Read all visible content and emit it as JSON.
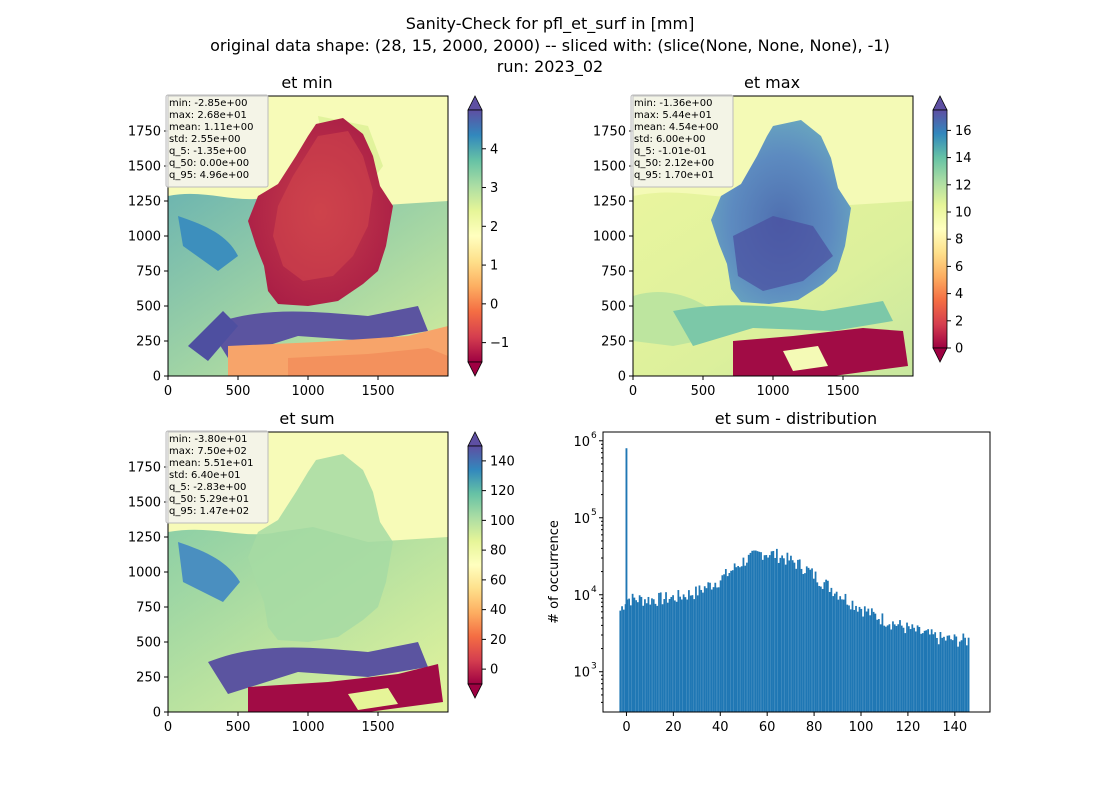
{
  "figure": {
    "title_lines": [
      "Sanity-Check for pfl_et_surf in [mm]",
      "original data shape: (28, 15, 2000, 2000) -- sliced with: (slice(None, None, None), -1)",
      "run: 2023_02"
    ]
  },
  "colors": {
    "spectral": [
      "#9e0142",
      "#d53e4f",
      "#f46d43",
      "#fdae61",
      "#fee08b",
      "#ffffbf",
      "#e6f598",
      "#abdda4",
      "#66c2a5",
      "#3288bd",
      "#5e4fa2"
    ],
    "hist_bar": "#1f77b4",
    "land_dark": "#b81f48",
    "sea": "#fbfcbd"
  },
  "chart_data": [
    {
      "type": "heatmap",
      "title": "et min",
      "xlim": [
        0,
        2000
      ],
      "ylim": [
        0,
        2000
      ],
      "xticks": [
        0,
        500,
        1000,
        1500
      ],
      "yticks": [
        0,
        250,
        500,
        750,
        1000,
        1250,
        1500,
        1750
      ],
      "colorbar": {
        "min": -1.5,
        "max": 5,
        "ticks": [
          -1,
          0,
          1,
          2,
          3,
          4
        ],
        "tick_labels": [
          "−1",
          "0",
          "1",
          "2",
          "3",
          "4"
        ],
        "extend": "both"
      },
      "stats": [
        "min: -2.85e+00",
        "max: 2.68e+01",
        "mean: 1.11e+00",
        "std: 2.55e+00",
        "q_5: -1.35e+00",
        "q_50: 0.00e+00",
        "q_95: 4.96e+00"
      ]
    },
    {
      "type": "heatmap",
      "title": "et max",
      "xlim": [
        0,
        2000
      ],
      "ylim": [
        0,
        2000
      ],
      "xticks": [
        0,
        500,
        1000,
        1500
      ],
      "yticks": [
        0,
        250,
        500,
        750,
        1000,
        1250,
        1500,
        1750
      ],
      "colorbar": {
        "min": 0,
        "max": 17.5,
        "ticks": [
          0,
          2,
          4,
          6,
          8,
          10,
          12,
          14,
          16
        ],
        "tick_labels": [
          "0",
          "2",
          "4",
          "6",
          "8",
          "10",
          "12",
          "14",
          "16"
        ],
        "extend": "both"
      },
      "stats": [
        "min: -1.36e+00",
        "max: 5.44e+01",
        "mean: 4.54e+00",
        "std: 6.00e+00",
        "q_5: -1.01e-01",
        "q_50: 2.12e+00",
        "q_95: 1.70e+01"
      ]
    },
    {
      "type": "heatmap",
      "title": "et sum",
      "xlim": [
        0,
        2000
      ],
      "ylim": [
        0,
        2000
      ],
      "xticks": [
        0,
        500,
        1000,
        1500
      ],
      "yticks": [
        0,
        250,
        500,
        750,
        1000,
        1250,
        1500,
        1750
      ],
      "colorbar": {
        "min": -10,
        "max": 150,
        "ticks": [
          0,
          20,
          40,
          60,
          80,
          100,
          120,
          140
        ],
        "tick_labels": [
          "0",
          "20",
          "40",
          "60",
          "80",
          "100",
          "120",
          "140"
        ],
        "extend": "both"
      },
      "stats": [
        "min: -3.80e+01",
        "max: 7.50e+02",
        "mean: 5.51e+01",
        "std: 6.40e+01",
        "q_5: -2.83e+00",
        "q_50: 5.29e+01",
        "q_95: 1.47e+02"
      ]
    },
    {
      "type": "bar",
      "title": "et sum - distribution",
      "ylabel": "# of occurrence",
      "yscale": "log",
      "xlim": [
        -10,
        155
      ],
      "ylim": [
        300,
        1300000
      ],
      "xticks": [
        0,
        20,
        40,
        60,
        80,
        100,
        120,
        140
      ],
      "yticks": [
        1000,
        10000,
        100000,
        1000000
      ],
      "ytick_labels": [
        [
          "10",
          "3"
        ],
        [
          "10",
          "4"
        ],
        [
          "10",
          "5"
        ],
        [
          "10",
          "6"
        ]
      ],
      "bin_start": -3,
      "bin_width": 0.75,
      "spike": {
        "x": 0,
        "value": 800000
      },
      "envelope": [
        {
          "x": -3,
          "value": 6000
        },
        {
          "x": 0,
          "value": 9000
        },
        {
          "x": 10,
          "value": 8800
        },
        {
          "x": 20,
          "value": 9300
        },
        {
          "x": 30,
          "value": 11000
        },
        {
          "x": 40,
          "value": 16000
        },
        {
          "x": 50,
          "value": 28000
        },
        {
          "x": 58,
          "value": 36000
        },
        {
          "x": 65,
          "value": 33000
        },
        {
          "x": 75,
          "value": 24000
        },
        {
          "x": 85,
          "value": 14000
        },
        {
          "x": 95,
          "value": 8500
        },
        {
          "x": 105,
          "value": 5600
        },
        {
          "x": 115,
          "value": 4200
        },
        {
          "x": 125,
          "value": 3300
        },
        {
          "x": 135,
          "value": 2700
        },
        {
          "x": 146,
          "value": 2600
        }
      ]
    }
  ]
}
